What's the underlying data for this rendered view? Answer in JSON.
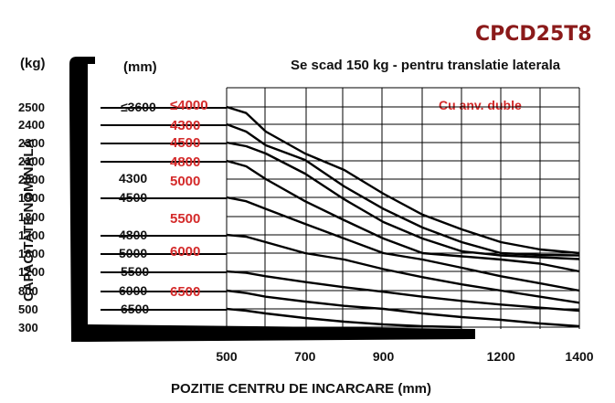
{
  "chart_data": {
    "type": "line",
    "title": "CPCD25T8",
    "note_right": "Cu anv. duble",
    "side_note": "Se scad 150 kg  - pentru translatie laterala",
    "ylabel": "CAPACITATE NOMINALA",
    "yunit": "(kg)",
    "xlabel": "POZITIE CENTRU DE INCARCARE (mm)",
    "height_unit": "(mm)",
    "xlim": [
      500,
      1400
    ],
    "x_ticks": [
      500,
      700,
      900,
      1200,
      1400
    ],
    "y_ticks": [
      2500,
      2400,
      2300,
      2100,
      2000,
      1900,
      1800,
      1700,
      1600,
      1200,
      800,
      500,
      300
    ],
    "grid": true,
    "left_height_labels": [
      "≤3600",
      "4300",
      "4500",
      "4800",
      "5000",
      "5500",
      "6000",
      "6500"
    ],
    "red_height_labels": [
      "≤4000",
      "4300",
      "4500",
      "4800",
      "5000",
      "5500",
      "6000",
      "6500"
    ],
    "colors": {
      "title": "#8b1a1a",
      "red": "#d42a2a",
      "line": "#000000",
      "grid": "#000000"
    },
    "series": [
      {
        "x": [
          500,
          550,
          600,
          700,
          800,
          900,
          1000,
          1100,
          1200,
          1300,
          1400
        ],
        "y": [
          2500,
          2465,
          2360,
          2180,
          2050,
          1920,
          1810,
          1730,
          1660,
          1620,
          1600
        ]
      },
      {
        "x": [
          500,
          550,
          600,
          700,
          800,
          900,
          1000,
          1100,
          1200,
          1300,
          1400
        ],
        "y": [
          2400,
          2360,
          2270,
          2110,
          1960,
          1840,
          1740,
          1660,
          1600,
          1560,
          1550
        ]
      },
      {
        "x": [
          500,
          550,
          600,
          700,
          800,
          900,
          1000,
          1100,
          1200,
          1300,
          1400
        ],
        "y": [
          2300,
          2260,
          2180,
          2030,
          1890,
          1770,
          1680,
          1610,
          1550,
          1510,
          1470
        ]
      },
      {
        "x": [
          500,
          550,
          600,
          700,
          800,
          900,
          1000,
          1100,
          1200,
          1300,
          1400
        ],
        "y": [
          2100,
          2070,
          2000,
          1880,
          1780,
          1680,
          1600,
          1530,
          1460,
          1370,
          1200
        ]
      },
      {
        "x": [
          500,
          550,
          600,
          700,
          800,
          900,
          1000,
          1100,
          1200,
          1300,
          1400
        ],
        "y": [
          1900,
          1880,
          1840,
          1760,
          1680,
          1600,
          1460,
          1280,
          1100,
          950,
          800
        ]
      },
      {
        "x": [
          500,
          550,
          600,
          700,
          800,
          900,
          1000,
          1100,
          1200,
          1300,
          1400
        ],
        "y": [
          1700,
          1690,
          1660,
          1600,
          1460,
          1250,
          1080,
          930,
          800,
          700,
          600
        ]
      },
      {
        "x": [
          500,
          550,
          600,
          700,
          800,
          900,
          1000,
          1100,
          1200,
          1300,
          1400
        ],
        "y": [
          1200,
          1170,
          1100,
          980,
          870,
          780,
          700,
          630,
          570,
          520,
          480
        ]
      },
      {
        "x": [
          500,
          550,
          600,
          700,
          800,
          900,
          1000,
          1100,
          1200,
          1300,
          1400
        ],
        "y": [
          800,
          760,
          700,
          620,
          550,
          500,
          450,
          410,
          380,
          340,
          310
        ]
      },
      {
        "x": [
          500,
          550,
          600,
          700,
          800,
          900,
          1000,
          1100
        ],
        "y": [
          500,
          480,
          450,
          400,
          360,
          330,
          310,
          300
        ]
      }
    ]
  }
}
